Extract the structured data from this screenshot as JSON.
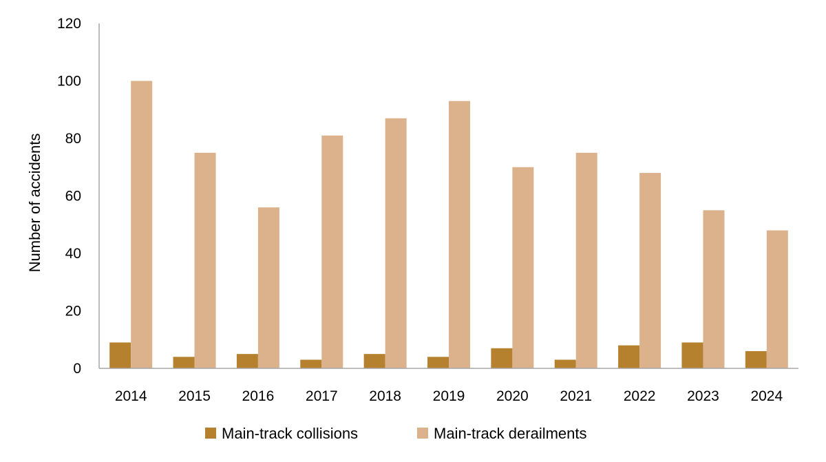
{
  "chart_data": {
    "type": "bar",
    "title": "",
    "xlabel": "",
    "ylabel": "Number of accidents",
    "ylim": [
      0,
      120
    ],
    "yticks": [
      0,
      20,
      40,
      60,
      80,
      100,
      120
    ],
    "grid": false,
    "legend_position": "bottom",
    "categories": [
      "2014",
      "2015",
      "2016",
      "2017",
      "2018",
      "2019",
      "2020",
      "2021",
      "2022",
      "2023",
      "2024"
    ],
    "series": [
      {
        "name": "Main-track collisions",
        "color": "#b5812f",
        "values": [
          9,
          4,
          5,
          3,
          5,
          4,
          7,
          3,
          8,
          9,
          6
        ]
      },
      {
        "name": "Main-track derailments",
        "color": "#dbb28c",
        "values": [
          100,
          75,
          56,
          81,
          87,
          93,
          70,
          75,
          68,
          55,
          48
        ]
      }
    ]
  }
}
